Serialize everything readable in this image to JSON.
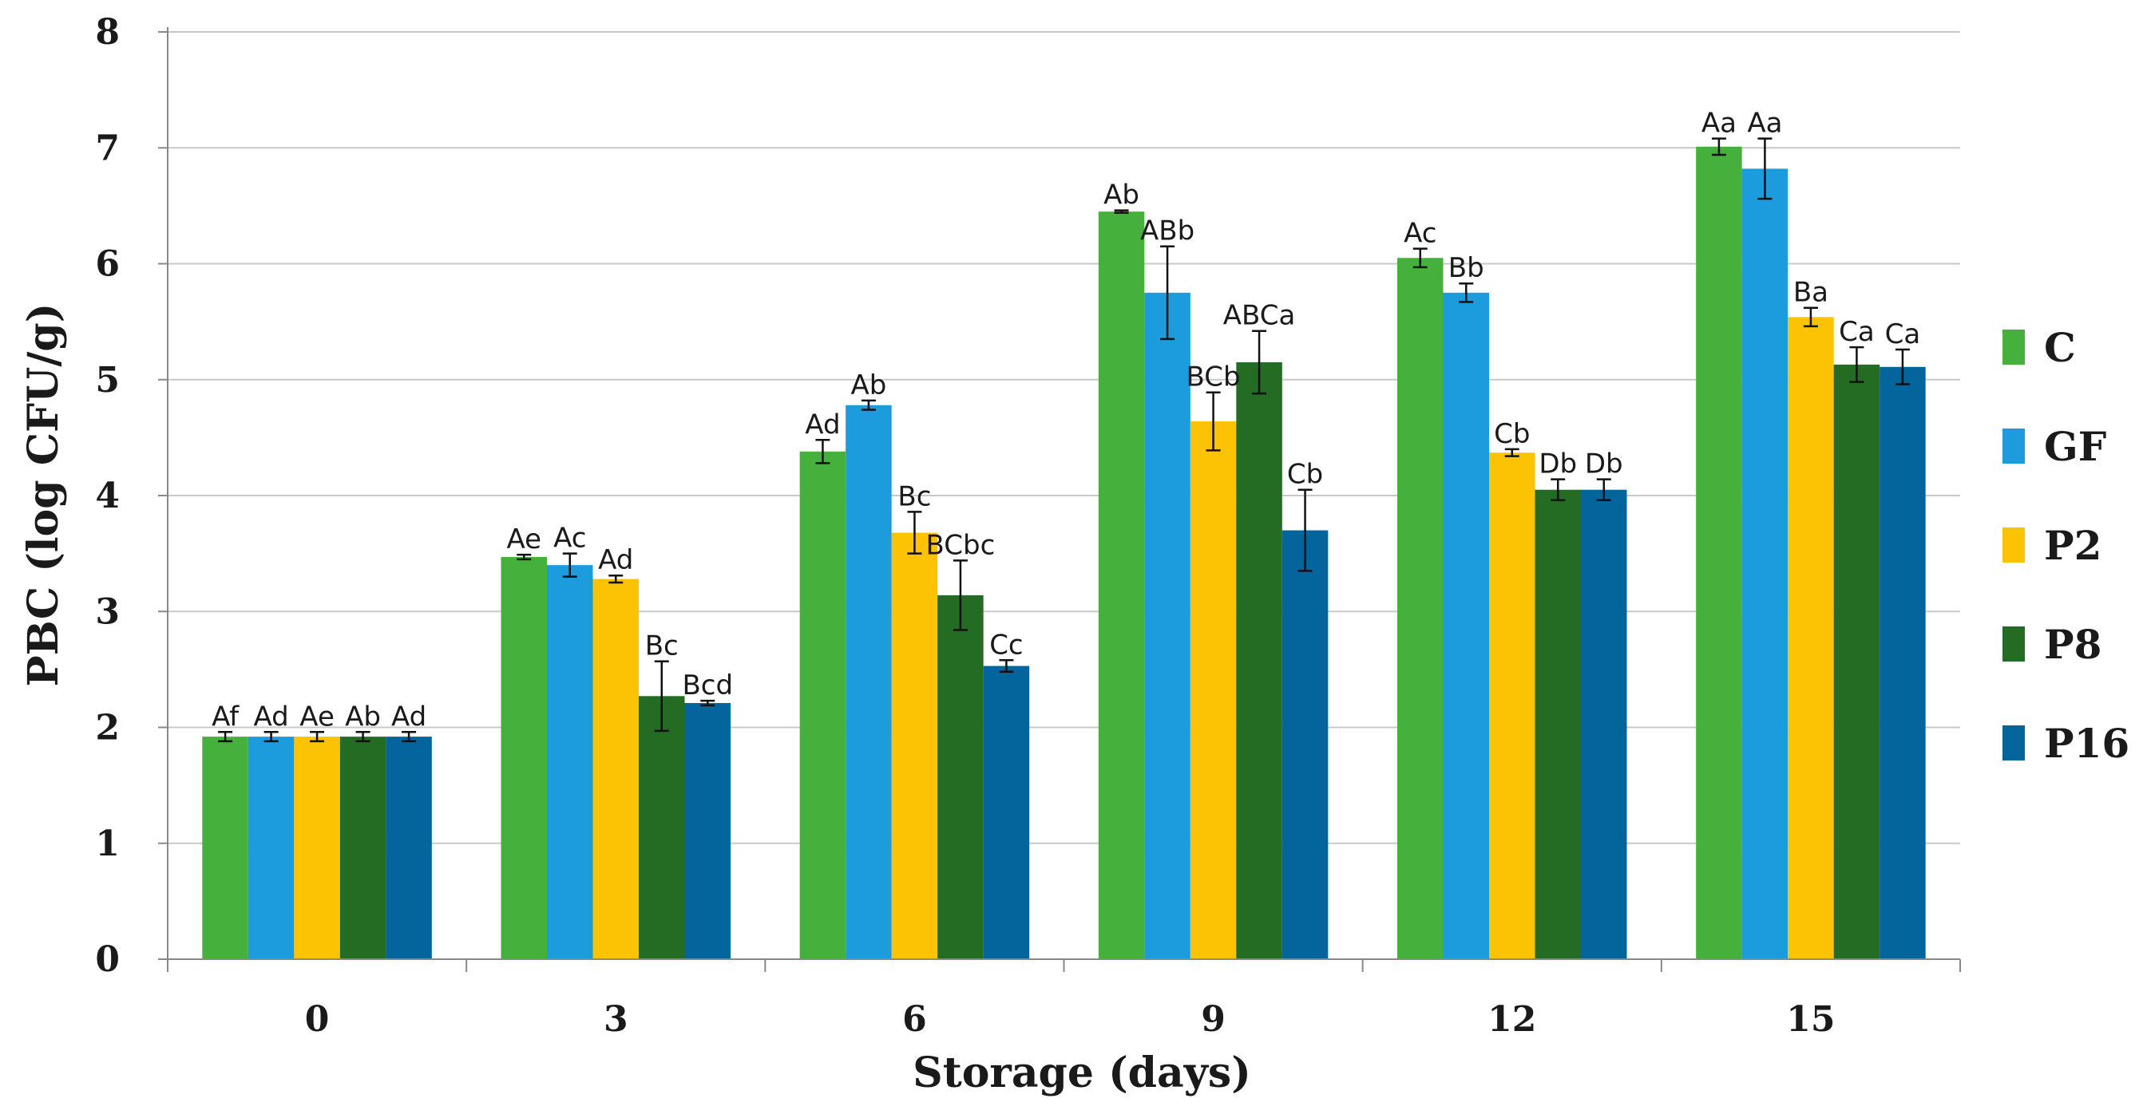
{
  "chart_data": {
    "type": "bar",
    "title": "",
    "xlabel": "Storage (days)",
    "ylabel": "PBC (log CFU/g)",
    "ylim": [
      0,
      8
    ],
    "yticks": [
      "0",
      "1",
      "2",
      "3",
      "4",
      "5",
      "6",
      "7",
      "8"
    ],
    "grid": true,
    "legend_position": "right",
    "categories": [
      "0",
      "3",
      "6",
      "9",
      "12",
      "15"
    ],
    "series": [
      {
        "name": "C",
        "color": "#46b03c",
        "values": [
          1.92,
          3.47,
          4.38,
          6.45,
          6.05,
          7.01
        ],
        "errors": [
          0.04,
          0.02,
          0.1,
          0.01,
          0.08,
          0.07
        ],
        "labels": [
          "Af",
          "Ae",
          "Ad",
          "Ab",
          "Ac",
          "Aa"
        ]
      },
      {
        "name": "GF",
        "color": "#1c9cdc",
        "values": [
          1.92,
          3.4,
          4.78,
          5.75,
          5.75,
          6.82
        ],
        "errors": [
          0.04,
          0.1,
          0.04,
          0.4,
          0.08,
          0.26
        ],
        "labels": [
          "Ad",
          "Ac",
          "Ab",
          "ABb",
          "Bb",
          "Aa"
        ]
      },
      {
        "name": "P2",
        "color": "#fcc204",
        "values": [
          1.92,
          3.28,
          3.68,
          4.64,
          4.37,
          5.54
        ],
        "errors": [
          0.04,
          0.03,
          0.18,
          0.25,
          0.03,
          0.08
        ],
        "labels": [
          "Ae",
          "Ad",
          "Bc",
          "BCb",
          "Cb",
          "Ba"
        ]
      },
      {
        "name": "P8",
        "color": "#246c24",
        "values": [
          1.92,
          2.27,
          3.14,
          5.15,
          4.05,
          5.13
        ],
        "errors": [
          0.04,
          0.3,
          0.3,
          0.27,
          0.09,
          0.15
        ],
        "labels": [
          "Ab",
          "Bc",
          "BCbc",
          "ABCa",
          "Db",
          "Ca"
        ]
      },
      {
        "name": "P16",
        "color": "#04649c",
        "values": [
          1.92,
          2.21,
          2.53,
          3.7,
          4.05,
          5.11
        ],
        "errors": [
          0.04,
          0.02,
          0.05,
          0.35,
          0.09,
          0.15
        ],
        "labels": [
          "Ad",
          "Bcd",
          "Cc",
          "Cb",
          "Db",
          "Ca"
        ]
      }
    ]
  }
}
